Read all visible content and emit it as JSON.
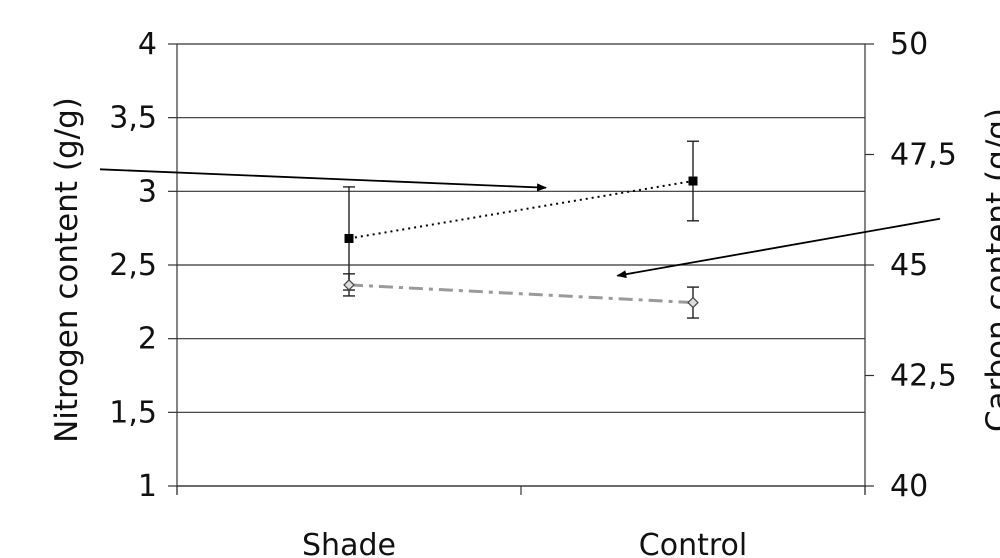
{
  "chart_data": {
    "type": "line",
    "categories": [
      "Shade",
      "Control"
    ],
    "left_axis": {
      "label": "Nitrogen content (g/g)",
      "ylim": [
        1,
        4
      ],
      "ticks": [
        1,
        1.5,
        2,
        2.5,
        3,
        3.5,
        4
      ],
      "tick_labels": [
        "1",
        "1,5",
        "2",
        "2,5",
        "3",
        "3,5",
        "4"
      ]
    },
    "right_axis": {
      "label": "Carbon content (g/g)",
      "ylim": [
        40,
        50
      ],
      "ticks": [
        40,
        42.5,
        45,
        47.5,
        50
      ],
      "tick_labels": [
        "40",
        "42,5",
        "45",
        "47,5",
        "50"
      ]
    },
    "grid": true,
    "series": [
      {
        "axis": "left",
        "marker": "square",
        "line_style": "dotted",
        "color": "#000000",
        "values": [
          2.68,
          3.07
        ],
        "error": [
          0.35,
          0.27
        ]
      },
      {
        "axis": "right",
        "marker": "diamond",
        "line_style": "dash-dot",
        "color": "#9a9a9a",
        "values": [
          44.55,
          44.15
        ],
        "error": [
          0.25,
          0.35
        ]
      }
    ],
    "annotations": [
      {
        "type": "arrow",
        "points_to_axis": "left"
      },
      {
        "type": "arrow",
        "points_to_axis": "right"
      }
    ]
  }
}
